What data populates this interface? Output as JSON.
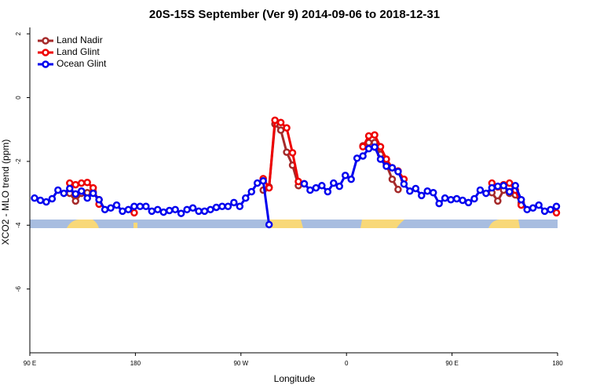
{
  "chart_data": {
    "type": "line",
    "title": "20S-15S September (Ver 9)   2014-09-06 to 2018-12-31",
    "x_label": "Longitude",
    "y_label": "XCO2 - MLO trend (ppm)",
    "x": [
      94,
      99,
      104,
      109,
      114,
      119,
      124,
      129,
      134,
      139,
      144,
      149,
      154,
      159,
      164,
      169,
      174,
      179,
      184,
      189,
      194,
      199,
      204,
      209,
      214,
      219,
      224,
      229,
      234,
      239,
      244,
      249,
      254,
      259,
      264,
      269,
      274,
      279,
      284,
      289,
      294,
      299,
      304,
      309,
      314,
      319,
      324,
      329,
      334,
      339,
      344,
      349,
      354,
      359,
      364,
      369,
      374,
      379,
      384,
      389,
      394,
      399,
      404,
      409,
      414,
      419,
      424,
      429,
      434,
      439,
      444,
      449,
      454,
      459,
      464,
      469,
      474,
      479,
      484,
      489,
      494,
      499,
      504,
      509,
      514,
      519,
      524,
      529,
      534,
      539
    ],
    "series": [
      {
        "name": "Land Nadir",
        "color": "#a52a2a",
        "values": [
          null,
          null,
          null,
          null,
          null,
          null,
          -3.0,
          -3.24,
          -3.0,
          -2.98,
          -2.95,
          -3.2,
          null,
          null,
          null,
          null,
          null,
          null,
          null,
          null,
          null,
          null,
          null,
          null,
          null,
          null,
          null,
          null,
          null,
          null,
          null,
          null,
          null,
          null,
          null,
          null,
          null,
          null,
          null,
          -2.9,
          -2.8,
          -0.83,
          -1.02,
          -1.71,
          -2.12,
          -2.76,
          null,
          null,
          null,
          null,
          null,
          null,
          null,
          null,
          null,
          null,
          -1.51,
          -1.41,
          -1.41,
          -1.78,
          -2.1,
          -2.56,
          -2.88,
          null,
          null,
          null,
          null,
          null,
          null,
          null,
          null,
          null,
          null,
          null,
          null,
          null,
          null,
          null,
          -2.98,
          -3.24,
          -2.9,
          -3.0,
          -3.05,
          -3.3,
          null,
          null,
          null,
          null,
          null,
          null
        ]
      },
      {
        "name": "Land Glint",
        "color": "#ee0000",
        "values": [
          null,
          null,
          null,
          null,
          null,
          null,
          -2.68,
          -2.73,
          -2.68,
          -2.66,
          -2.83,
          -3.34,
          null,
          null,
          null,
          null,
          null,
          -3.61,
          null,
          null,
          null,
          null,
          null,
          null,
          null,
          null,
          null,
          null,
          null,
          null,
          null,
          null,
          null,
          null,
          null,
          null,
          null,
          null,
          null,
          -2.54,
          -2.83,
          -0.71,
          -0.78,
          -0.95,
          -1.73,
          -2.63,
          -2.7,
          null,
          null,
          null,
          null,
          null,
          null,
          null,
          null,
          null,
          -1.54,
          -1.2,
          -1.17,
          -1.54,
          -1.93,
          -2.2,
          -2.3,
          -2.56,
          null,
          null,
          null,
          null,
          null,
          null,
          null,
          null,
          null,
          null,
          null,
          null,
          null,
          null,
          -2.68,
          -2.8,
          -2.73,
          -2.68,
          -2.9,
          -3.37,
          null,
          null,
          null,
          null,
          null,
          -3.61
        ]
      },
      {
        "name": "Ocean Glint",
        "color": "#0000ee",
        "values": [
          -3.15,
          -3.22,
          -3.27,
          -3.17,
          -2.9,
          -3.0,
          -2.85,
          -3.02,
          -2.93,
          -3.15,
          -3.0,
          -3.2,
          -3.51,
          -3.46,
          -3.37,
          -3.56,
          -3.51,
          -3.41,
          -3.41,
          -3.41,
          -3.56,
          -3.51,
          -3.59,
          -3.54,
          -3.51,
          -3.63,
          -3.51,
          -3.46,
          -3.56,
          -3.56,
          -3.51,
          -3.44,
          -3.41,
          -3.41,
          -3.29,
          -3.41,
          -3.15,
          -2.95,
          -2.68,
          -2.61,
          -3.98,
          null,
          null,
          null,
          null,
          null,
          -2.7,
          -2.9,
          -2.83,
          -2.76,
          -2.95,
          -2.68,
          -2.78,
          -2.44,
          -2.56,
          -1.9,
          -1.83,
          -1.6,
          -1.55,
          -1.93,
          -2.15,
          -2.2,
          -2.32,
          -2.71,
          -2.93,
          -2.85,
          -3.07,
          -2.93,
          -2.98,
          -3.32,
          -3.15,
          -3.2,
          -3.17,
          -3.22,
          -3.29,
          -3.17,
          -2.9,
          -3.0,
          -2.83,
          -2.78,
          -2.76,
          -2.95,
          -2.76,
          -3.2,
          -3.51,
          -3.46,
          -3.37,
          -3.56,
          -3.51,
          -3.41
        ]
      }
    ],
    "xlim": [
      90,
      540
    ],
    "xticks": [
      {
        "value": 90,
        "label": "90 E"
      },
      180,
      {
        "value": 270,
        "label": "90 W"
      },
      {
        "value": 360,
        "label": "0"
      },
      {
        "value": 450,
        "label": "90 E"
      },
      {
        "value": 540,
        "label": "180"
      }
    ],
    "ylim": [
      -8,
      2.2
    ],
    "yticks": [
      -6,
      -4,
      -2,
      0,
      2
    ],
    "legend_position": "top-left"
  }
}
